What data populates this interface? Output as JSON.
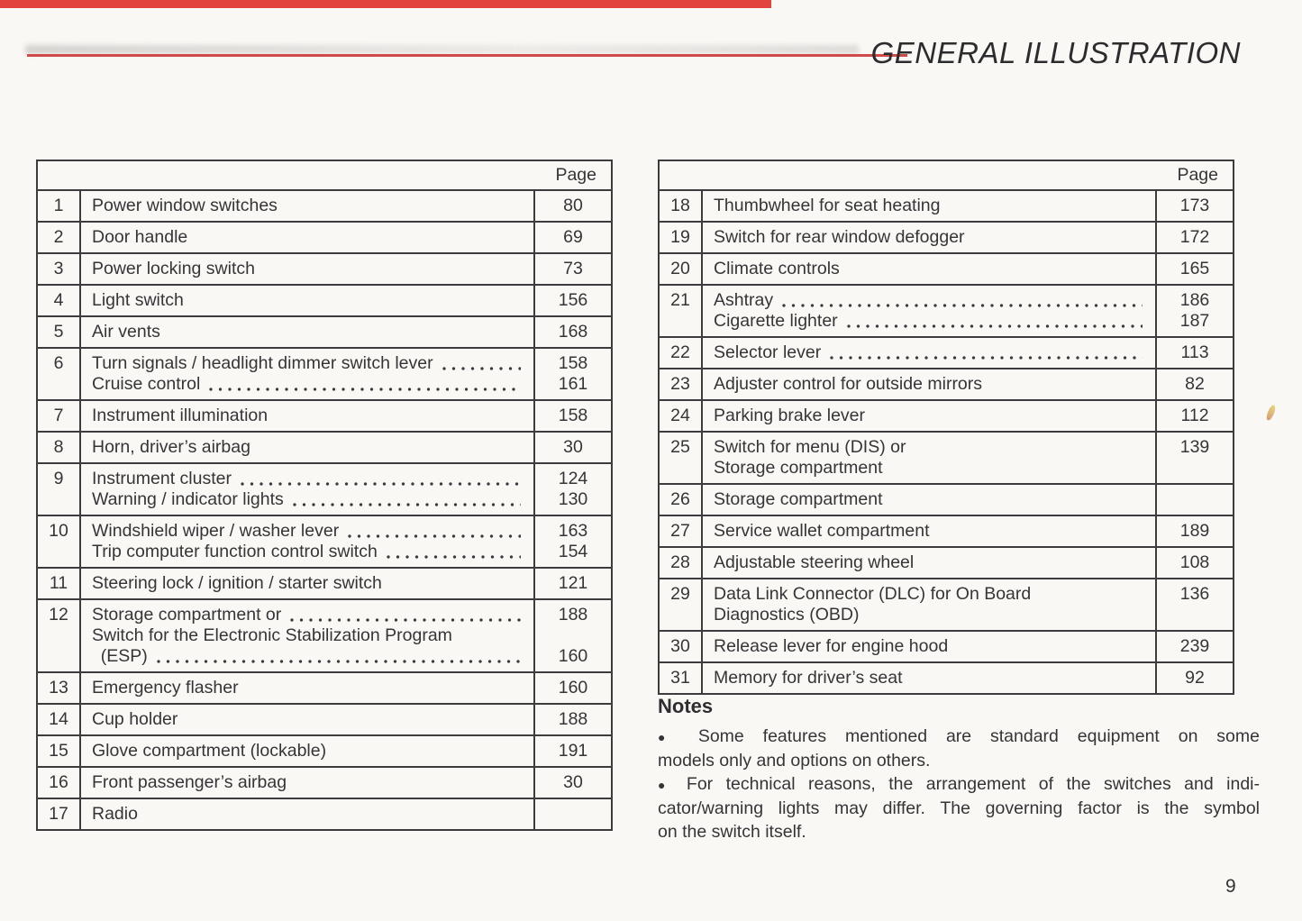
{
  "page": {
    "title": "GENERAL ILLUSTRATION",
    "page_number": "9"
  },
  "colors": {
    "accent_red": "#cf4b4a",
    "top_bar_red": "#e2433d",
    "table_line": "#3c3c3e"
  },
  "tables": {
    "page_column_header": "Page",
    "left": {
      "rows": [
        {
          "num": "1",
          "lines": [
            {
              "text": "Power window switches",
              "dots": false,
              "page": "80"
            }
          ]
        },
        {
          "num": "2",
          "lines": [
            {
              "text": "Door handle",
              "dots": false,
              "page": "69"
            }
          ]
        },
        {
          "num": "3",
          "lines": [
            {
              "text": "Power locking switch",
              "dots": false,
              "page": "73"
            }
          ]
        },
        {
          "num": "4",
          "lines": [
            {
              "text": "Light switch",
              "dots": false,
              "page": "156"
            }
          ]
        },
        {
          "num": "5",
          "lines": [
            {
              "text": "Air vents",
              "dots": false,
              "page": "168"
            }
          ]
        },
        {
          "num": "6",
          "lines": [
            {
              "text": "Turn signals / headlight dimmer switch lever",
              "dots": true,
              "page": "158"
            },
            {
              "text": "Cruise control",
              "dots": true,
              "page": "161"
            }
          ]
        },
        {
          "num": "7",
          "lines": [
            {
              "text": "Instrument illumination",
              "dots": false,
              "page": "158"
            }
          ]
        },
        {
          "num": "8",
          "lines": [
            {
              "text": "Horn, driver’s airbag",
              "dots": false,
              "page": "30"
            }
          ]
        },
        {
          "num": "9",
          "lines": [
            {
              "text": "Instrument cluster",
              "dots": true,
              "page": "124"
            },
            {
              "text": "Warning / indicator lights",
              "dots": true,
              "page": "130"
            }
          ]
        },
        {
          "num": "10",
          "lines": [
            {
              "text": "Windshield wiper / washer lever",
              "dots": true,
              "page": "163"
            },
            {
              "text": "Trip computer function control switch",
              "dots": true,
              "page": "154"
            }
          ]
        },
        {
          "num": "11",
          "lines": [
            {
              "text": "Steering lock / ignition / starter switch",
              "dots": false,
              "page": "121"
            }
          ]
        },
        {
          "num": "12",
          "lines": [
            {
              "text": "Storage compartment or",
              "dots": true,
              "page": "188"
            },
            {
              "text": "Switch for the Electronic Stabilization Program",
              "dots": false,
              "page": ""
            },
            {
              "text": " (ESP)",
              "dots": true,
              "page": "160"
            }
          ]
        },
        {
          "num": "13",
          "lines": [
            {
              "text": "Emergency flasher",
              "dots": false,
              "page": "160"
            }
          ]
        },
        {
          "num": "14",
          "lines": [
            {
              "text": "Cup holder",
              "dots": false,
              "page": "188"
            }
          ]
        },
        {
          "num": "15",
          "lines": [
            {
              "text": "Glove compartment (lockable)",
              "dots": false,
              "page": "191"
            }
          ]
        },
        {
          "num": "16",
          "lines": [
            {
              "text": "Front passenger’s airbag",
              "dots": false,
              "page": "30"
            }
          ]
        },
        {
          "num": "17",
          "lines": [
            {
              "text": "Radio",
              "dots": false,
              "page": ""
            }
          ]
        }
      ]
    },
    "right": {
      "rows": [
        {
          "num": "18",
          "lines": [
            {
              "text": "Thumbwheel for seat heating",
              "dots": false,
              "page": "173"
            }
          ]
        },
        {
          "num": "19",
          "lines": [
            {
              "text": "Switch for rear window defogger",
              "dots": false,
              "page": "172"
            }
          ]
        },
        {
          "num": "20",
          "lines": [
            {
              "text": "Climate controls",
              "dots": false,
              "page": "165"
            }
          ]
        },
        {
          "num": "21",
          "lines": [
            {
              "text": "Ashtray",
              "dots": true,
              "page": "186"
            },
            {
              "text": "Cigarette lighter",
              "dots": true,
              "page": "187"
            }
          ]
        },
        {
          "num": "22",
          "lines": [
            {
              "text": "Selector lever",
              "dots": true,
              "page": "113"
            }
          ]
        },
        {
          "num": "23",
          "lines": [
            {
              "text": "Adjuster control for outside mirrors",
              "dots": false,
              "page": "82"
            }
          ]
        },
        {
          "num": "24",
          "lines": [
            {
              "text": "Parking brake lever",
              "dots": false,
              "page": "112"
            }
          ]
        },
        {
          "num": "25",
          "lines": [
            {
              "text": "Switch for menu (DIS) or",
              "dots": false,
              "page": "139"
            },
            {
              "text": "Storage compartment",
              "dots": false,
              "page": ""
            }
          ]
        },
        {
          "num": "26",
          "lines": [
            {
              "text": "Storage compartment",
              "dots": false,
              "page": ""
            }
          ]
        },
        {
          "num": "27",
          "lines": [
            {
              "text": "Service wallet compartment",
              "dots": false,
              "page": "189"
            }
          ]
        },
        {
          "num": "28",
          "lines": [
            {
              "text": "Adjustable steering wheel",
              "dots": false,
              "page": "108"
            }
          ]
        },
        {
          "num": "29",
          "lines": [
            {
              "text": "Data Link Connector (DLC) for On Board",
              "dots": false,
              "page": "136"
            },
            {
              "text": "Diagnostics (OBD)",
              "dots": false,
              "page": ""
            }
          ]
        },
        {
          "num": "30",
          "lines": [
            {
              "text": "Release lever for engine hood",
              "dots": false,
              "page": "239"
            }
          ]
        },
        {
          "num": "31",
          "lines": [
            {
              "text": "Memory for driver’s seat",
              "dots": false,
              "page": "92"
            }
          ]
        }
      ]
    }
  },
  "notes": {
    "heading": "Notes",
    "bullet_marker": "●",
    "bullets": [
      {
        "lines": [
          "Some features mentioned are standard equipment on some",
          "models only and options on others."
        ]
      },
      {
        "lines": [
          "For technical reasons, the arrangement of the switches and indi-",
          "cator/warning lights may differ. The governing factor is the symbol",
          "on the switch itself."
        ]
      }
    ]
  }
}
